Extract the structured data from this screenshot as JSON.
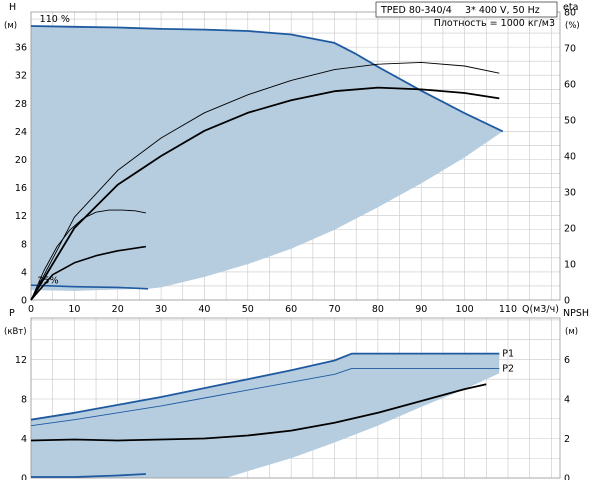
{
  "header": {
    "model": "TPED 80-340/4",
    "supply": "3* 400 V, 50 Hz",
    "density": "Плотность = 1000 кг/м3"
  },
  "chart_data": [
    {
      "type": "line",
      "title": "",
      "xlabel": "Q(м3/ч)",
      "xlim": [
        0,
        122
      ],
      "xticks": [
        0,
        10,
        20,
        30,
        40,
        50,
        60,
        70,
        80,
        90,
        100,
        110
      ],
      "y_left": {
        "name": "H",
        "unit": "(м)",
        "lim": [
          0,
          41
        ],
        "ticks": [
          0,
          4,
          8,
          12,
          16,
          20,
          24,
          28,
          32,
          36
        ]
      },
      "y_right": {
        "name": "eta",
        "unit": "(%)",
        "lim": [
          0,
          80
        ],
        "ticks": [
          0,
          10,
          20,
          30,
          40,
          50,
          60,
          70,
          80
        ]
      },
      "grid": true,
      "annotations": [
        {
          "text": "110 %",
          "x": 2,
          "y": 40
        },
        {
          "text": "25%",
          "x": 1.5,
          "y": 2.8
        }
      ],
      "operating_area": {
        "color": "#b6cde0",
        "upper": [
          [
            0,
            39
          ],
          [
            10,
            38.9
          ],
          [
            20,
            38.8
          ],
          [
            30,
            38.6
          ],
          [
            40,
            38.5
          ],
          [
            50,
            38.3
          ],
          [
            60,
            37.8
          ],
          [
            70,
            36.6
          ],
          [
            75,
            35
          ],
          [
            80,
            33.2
          ],
          [
            90,
            29.8
          ],
          [
            100,
            26.6
          ],
          [
            108.8,
            24
          ]
        ],
        "lower": [
          [
            108.8,
            24
          ],
          [
            100,
            20.3
          ],
          [
            90,
            16.6
          ],
          [
            80,
            13.2
          ],
          [
            70,
            10
          ],
          [
            60,
            7.3
          ],
          [
            50,
            5.1
          ],
          [
            40,
            3.3
          ],
          [
            30,
            1.8
          ],
          [
            27,
            1.6
          ],
          [
            20,
            1.5
          ],
          [
            10,
            1.3
          ],
          [
            0,
            1.4
          ]
        ]
      },
      "series": [
        {
          "axis": "left",
          "color": "#1f5aa0",
          "width": 1.8,
          "points": [
            [
              0,
              39
            ],
            [
              10,
              38.9
            ],
            [
              20,
              38.8
            ],
            [
              30,
              38.6
            ],
            [
              40,
              38.5
            ],
            [
              50,
              38.3
            ],
            [
              60,
              37.8
            ],
            [
              70,
              36.6
            ],
            [
              75,
              35
            ],
            [
              80,
              33.2
            ],
            [
              90,
              29.8
            ],
            [
              100,
              26.6
            ],
            [
              108.8,
              24
            ]
          ]
        },
        {
          "axis": "left",
          "color": "#1f5aa0",
          "width": 1.6,
          "points": [
            [
              0,
              2.1
            ],
            [
              10,
              1.9
            ],
            [
              20,
              1.8
            ],
            [
              27,
              1.6
            ]
          ]
        },
        {
          "axis": "left",
          "color": "#000000",
          "width": 0.9,
          "points": [
            [
              0,
              0
            ],
            [
              3,
              4.2
            ],
            [
              6,
              7.6
            ],
            [
              9,
              10
            ],
            [
              12,
              11.6
            ],
            [
              15,
              12.5
            ],
            [
              18,
              12.8
            ],
            [
              21,
              12.8
            ],
            [
              24,
              12.7
            ],
            [
              26.5,
              12.4
            ]
          ]
        },
        {
          "axis": "left",
          "color": "#000000",
          "width": 1.6,
          "points": [
            [
              0,
              0
            ],
            [
              5,
              3.6
            ],
            [
              10,
              5.3
            ],
            [
              15,
              6.3
            ],
            [
              20,
              7
            ],
            [
              26.5,
              7.6
            ]
          ]
        },
        {
          "axis": "right",
          "color": "#000000",
          "width": 0.9,
          "points": [
            [
              0,
              0
            ],
            [
              10,
              23
            ],
            [
              20,
              36
            ],
            [
              30,
              45
            ],
            [
              40,
              52
            ],
            [
              50,
              57
            ],
            [
              60,
              61
            ],
            [
              70,
              64
            ],
            [
              80,
              65.5
            ],
            [
              90,
              66
            ],
            [
              100,
              65
            ],
            [
              108,
              63
            ]
          ]
        },
        {
          "axis": "right",
          "color": "#000000",
          "width": 1.8,
          "points": [
            [
              0,
              0
            ],
            [
              10,
              20
            ],
            [
              20,
              32
            ],
            [
              30,
              40
            ],
            [
              40,
              47
            ],
            [
              50,
              52
            ],
            [
              60,
              55.5
            ],
            [
              70,
              58
            ],
            [
              80,
              59
            ],
            [
              90,
              58.5
            ],
            [
              100,
              57.5
            ],
            [
              108,
              56
            ]
          ]
        }
      ]
    },
    {
      "type": "line",
      "title": "",
      "xlabel": "",
      "xlim": [
        0,
        122
      ],
      "y_left": {
        "name": "P",
        "unit": "(кВт)",
        "lim": [
          0,
          16.2
        ],
        "ticks": [
          0,
          4,
          8,
          12
        ]
      },
      "y_right": {
        "name": "NPSH",
        "unit": "(м)",
        "lim": [
          0,
          8.1
        ],
        "ticks": [
          0,
          2,
          4,
          6
        ]
      },
      "grid": true,
      "operating_area": {
        "color": "#b6cde0",
        "upper": [
          [
            0,
            5.9
          ],
          [
            10,
            6.6
          ],
          [
            20,
            7.4
          ],
          [
            30,
            8.2
          ],
          [
            40,
            9.1
          ],
          [
            50,
            10
          ],
          [
            60,
            10.9
          ],
          [
            70,
            11.9
          ],
          [
            74,
            12.6
          ],
          [
            80,
            12.6
          ],
          [
            90,
            12.6
          ],
          [
            100,
            12.6
          ],
          [
            108,
            12.6
          ]
        ],
        "lower": [
          [
            108,
            10.6
          ],
          [
            100,
            9
          ],
          [
            90,
            7.2
          ],
          [
            80,
            5.3
          ],
          [
            70,
            3.6
          ],
          [
            60,
            2
          ],
          [
            50,
            0.7
          ],
          [
            45,
            0
          ],
          [
            0,
            0
          ]
        ]
      },
      "series": [
        {
          "name": "P1",
          "axis": "left",
          "color": "#1f5aa0",
          "width": 1.8,
          "points": [
            [
              0,
              5.9
            ],
            [
              10,
              6.6
            ],
            [
              20,
              7.4
            ],
            [
              30,
              8.2
            ],
            [
              40,
              9.1
            ],
            [
              50,
              10
            ],
            [
              60,
              10.9
            ],
            [
              70,
              11.9
            ],
            [
              74,
              12.6
            ],
            [
              80,
              12.6
            ],
            [
              90,
              12.6
            ],
            [
              100,
              12.6
            ],
            [
              108,
              12.6
            ]
          ]
        },
        {
          "name": "P2",
          "axis": "left",
          "color": "#1f5aa0",
          "width": 0.9,
          "points": [
            [
              0,
              5.3
            ],
            [
              10,
              5.9
            ],
            [
              20,
              6.6
            ],
            [
              30,
              7.3
            ],
            [
              40,
              8.1
            ],
            [
              50,
              8.9
            ],
            [
              60,
              9.7
            ],
            [
              70,
              10.5
            ],
            [
              74,
              11.1
            ],
            [
              80,
              11.1
            ],
            [
              90,
              11.1
            ],
            [
              100,
              11.1
            ],
            [
              108,
              11.1
            ]
          ]
        },
        {
          "axis": "left",
          "color": "#1f5aa0",
          "width": 1.8,
          "points": [
            [
              0,
              0.1
            ],
            [
              10,
              0.1
            ],
            [
              20,
              0.25
            ],
            [
              26.5,
              0.4
            ]
          ]
        },
        {
          "axis": "right",
          "color": "#000000",
          "width": 1.8,
          "points": [
            [
              0,
              1.9
            ],
            [
              10,
              1.95
            ],
            [
              20,
              1.9
            ],
            [
              30,
              1.95
            ],
            [
              40,
              2.0
            ],
            [
              50,
              2.15
            ],
            [
              60,
              2.4
            ],
            [
              70,
              2.8
            ],
            [
              80,
              3.3
            ],
            [
              90,
              3.9
            ],
            [
              100,
              4.5
            ],
            [
              105,
              4.75
            ]
          ]
        }
      ]
    }
  ]
}
